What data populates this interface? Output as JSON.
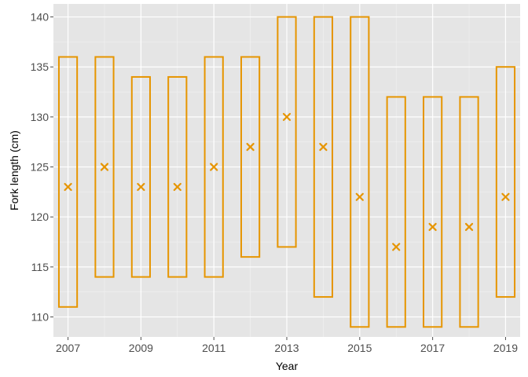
{
  "colors": {
    "panel": "#e5e5e5",
    "grid_major": "#ffffff",
    "grid_minor": "#f2f2f2",
    "series": "#e69500"
  },
  "chart_data": {
    "type": "box-range",
    "xlabel": "Year",
    "ylabel": "Fork length (cm)",
    "xlim": [
      2006.6,
      2019.4
    ],
    "ylim": [
      108,
      141.3
    ],
    "x_ticks": [
      2007,
      2009,
      2011,
      2013,
      2015,
      2017,
      2019
    ],
    "y_ticks": [
      110,
      115,
      120,
      125,
      130,
      135,
      140
    ],
    "grid": true,
    "legend": "none",
    "marker": "cross",
    "records": [
      {
        "year": 2007,
        "min": 111,
        "max": 136,
        "mean": 123
      },
      {
        "year": 2008,
        "min": 114,
        "max": 136,
        "mean": 125
      },
      {
        "year": 2009,
        "min": 114,
        "max": 134,
        "mean": 123
      },
      {
        "year": 2010,
        "min": 114,
        "max": 134,
        "mean": 123
      },
      {
        "year": 2011,
        "min": 114,
        "max": 136,
        "mean": 125
      },
      {
        "year": 2012,
        "min": 116,
        "max": 136,
        "mean": 127
      },
      {
        "year": 2013,
        "min": 117,
        "max": 140,
        "mean": 130
      },
      {
        "year": 2014,
        "min": 112,
        "max": 140,
        "mean": 127
      },
      {
        "year": 2015,
        "min": 109,
        "max": 140,
        "mean": 122
      },
      {
        "year": 2016,
        "min": 109,
        "max": 132,
        "mean": 117
      },
      {
        "year": 2017,
        "min": 109,
        "max": 132,
        "mean": 119
      },
      {
        "year": 2018,
        "min": 109,
        "max": 132,
        "mean": 119
      },
      {
        "year": 2019,
        "min": 112,
        "max": 135,
        "mean": 122
      }
    ]
  }
}
